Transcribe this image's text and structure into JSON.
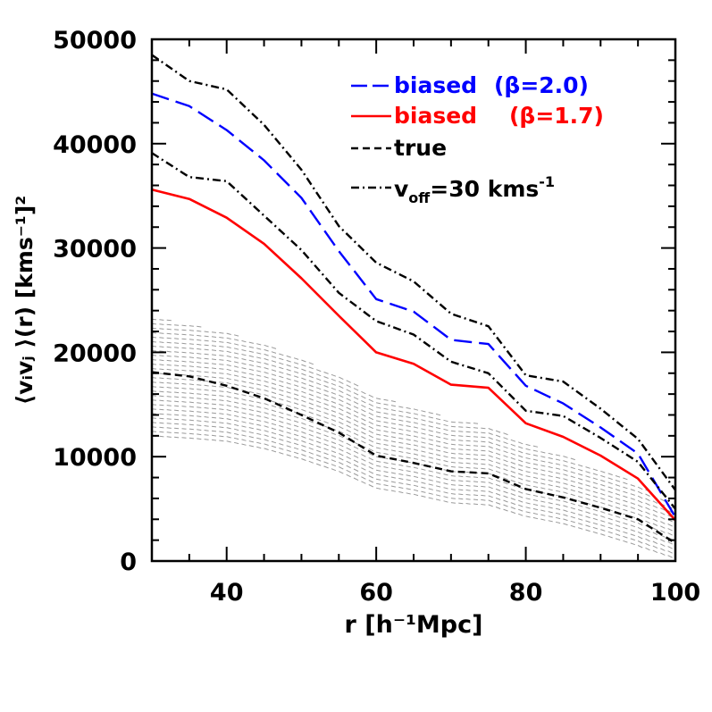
{
  "chart_data": {
    "type": "line",
    "xlabel": "r [h⁻¹Mpc]",
    "ylabel": "⟨vᵢvⱼ ⟩(r) [kms⁻¹]²",
    "xlim": [
      30,
      100
    ],
    "ylim": [
      0,
      50000
    ],
    "x_ticks": [
      40,
      60,
      80,
      100
    ],
    "x_tick_labels": [
      "40",
      "60",
      "80",
      "100"
    ],
    "y_ticks": [
      0,
      10000,
      20000,
      30000,
      40000,
      50000
    ],
    "y_tick_labels": [
      "0",
      "10000",
      "20000",
      "30000",
      "40000",
      "50000"
    ],
    "grid": false,
    "legend_position": "top-right",
    "x": [
      30,
      35,
      40,
      45,
      50,
      55,
      60,
      65,
      70,
      75,
      80,
      85,
      90,
      95,
      100
    ],
    "series": [
      {
        "name": "biased (β=2.0)",
        "legend_label": "biased",
        "legend_param": "(β=2.0)",
        "color": "#0000ff",
        "dash": "longdash",
        "values": [
          44800,
          43600,
          41300,
          38400,
          34800,
          29700,
          25100,
          23900,
          21200,
          20800,
          16800,
          15100,
          12800,
          10300,
          4200
        ]
      },
      {
        "name": "biased (β=1.7)",
        "legend_label": "biased",
        "legend_param": "(β=1.7)",
        "color": "#ff0000",
        "dash": "solid",
        "values": [
          35600,
          34700,
          32900,
          30400,
          27100,
          23500,
          20000,
          18900,
          16900,
          16600,
          13200,
          11900,
          10100,
          7900,
          3900
        ]
      },
      {
        "name": "true",
        "legend_label": "true",
        "legend_param": "",
        "color": "#000000",
        "dash": "shortdash",
        "values": [
          18100,
          17700,
          16800,
          15600,
          14000,
          12300,
          10100,
          9400,
          8600,
          8400,
          6900,
          6100,
          5100,
          4000,
          1700
        ]
      },
      {
        "name": "v_off=30 kms^-1 (upper)",
        "legend_label": "v",
        "legend_sub": "off",
        "legend_rest": "=30 kms",
        "legend_sup": "-1",
        "color": "#000000",
        "dash": "dotdash",
        "values": [
          48500,
          46000,
          45200,
          41800,
          37500,
          32100,
          28600,
          26800,
          23700,
          22500,
          17800,
          17200,
          14600,
          11700,
          6800
        ]
      },
      {
        "name": "v_off=30 kms^-1 (lower)",
        "color": "#000000",
        "dash": "dotdash",
        "values": [
          39100,
          36800,
          36400,
          33100,
          29800,
          25700,
          23000,
          21700,
          19100,
          18000,
          14400,
          13900,
          11800,
          9500,
          5000
        ]
      }
    ],
    "band": {
      "name": "true (scatter)",
      "color": "#9a9a9a",
      "upper": [
        23400,
        22700,
        22000,
        20800,
        19400,
        17800,
        15800,
        14800,
        13700,
        13000,
        11300,
        10200,
        8800,
        7400,
        5000
      ],
      "lower": [
        12000,
        11800,
        11500,
        10800,
        9800,
        8600,
        7000,
        6400,
        5600,
        5400,
        4300,
        3600,
        2600,
        1500,
        300
      ]
    }
  }
}
